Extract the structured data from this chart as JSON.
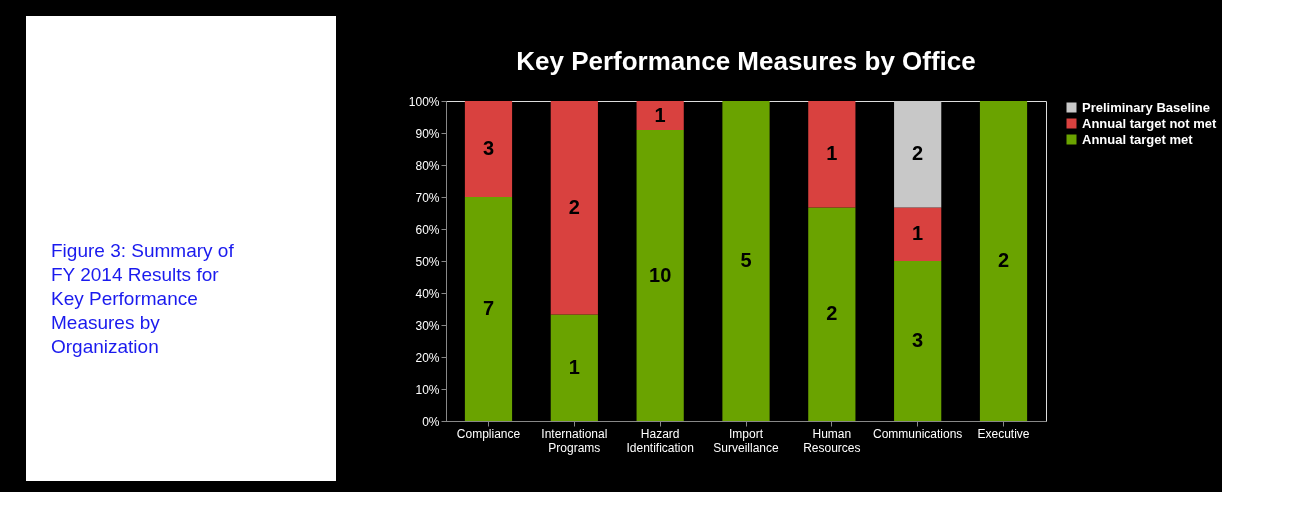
{
  "chart_data": {
    "type": "bar",
    "title": "Key Performance Measures by Office",
    "stacked": true,
    "categories": [
      "Compliance",
      "International Programs",
      "Hazard Identification",
      "Import Surveillance",
      "Human Resources",
      "Communications",
      "Executive"
    ],
    "series": [
      {
        "name": "Annual target met",
        "color": "#6aa300",
        "values": [
          70,
          33.3,
          90.9,
          100,
          66.7,
          50,
          100
        ]
      },
      {
        "name": "Annual target not met",
        "color": "#d9413f",
        "values": [
          30,
          66.7,
          9.1,
          null,
          33.3,
          16.7,
          null
        ]
      },
      {
        "name": "Preliminary Baseline",
        "color": "#c8c8c8",
        "values": [
          null,
          null,
          null,
          null,
          null,
          33.3,
          null
        ]
      }
    ],
    "ylim": [
      0,
      100
    ],
    "yticks": [
      {
        "value": 0,
        "label": "0%"
      },
      {
        "value": 10,
        "label": "10%"
      },
      {
        "value": 20,
        "label": "20%"
      },
      {
        "value": 30,
        "label": "30%"
      },
      {
        "value": 40,
        "label": "40%"
      },
      {
        "value": 50,
        "label": "50%"
      },
      {
        "value": 60,
        "label": "60%"
      },
      {
        "value": 70,
        "label": "70%"
      },
      {
        "value": 80,
        "label": "80%"
      },
      {
        "value": 90,
        "label": "90%"
      },
      {
        "value": 100,
        "label": "100%"
      }
    ],
    "legend": "right",
    "grid": false,
    "annotations": [
      "7",
      "3",
      "1",
      "2",
      "10",
      "1",
      "5",
      "2",
      "1",
      "3",
      "1",
      "2",
      "2",
      "Figure 3:  Summary of FY 2014 Results for Key Performance Measures by Organization"
    ]
  }
}
